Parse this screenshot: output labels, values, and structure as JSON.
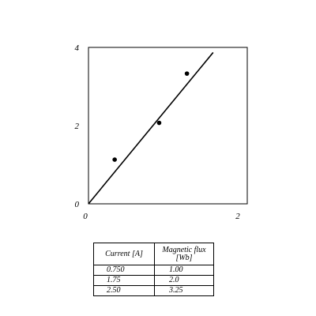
{
  "chart_data": {
    "type": "scatter",
    "title": "",
    "xlabel": "",
    "ylabel": "",
    "xlim": [
      0,
      2
    ],
    "ylim": [
      0,
      4
    ],
    "x_ticks": [
      "0",
      "2"
    ],
    "y_ticks": [
      "0",
      "2",
      "4"
    ],
    "grid": false,
    "points": [
      {
        "x": 0.33,
        "y": 1.13
      },
      {
        "x": 0.89,
        "y": 2.07
      },
      {
        "x": 1.24,
        "y": 3.33
      }
    ],
    "fit_line": {
      "x": [
        0,
        1.57
      ],
      "y": [
        0,
        3.87
      ]
    }
  },
  "table": {
    "headers": [
      "Current [A]",
      "Magnetic flux [Wb]"
    ],
    "rows": [
      [
        "0.750",
        "1.00"
      ],
      [
        "1.75",
        "2.0"
      ],
      [
        "2.50",
        "3.25"
      ]
    ]
  }
}
